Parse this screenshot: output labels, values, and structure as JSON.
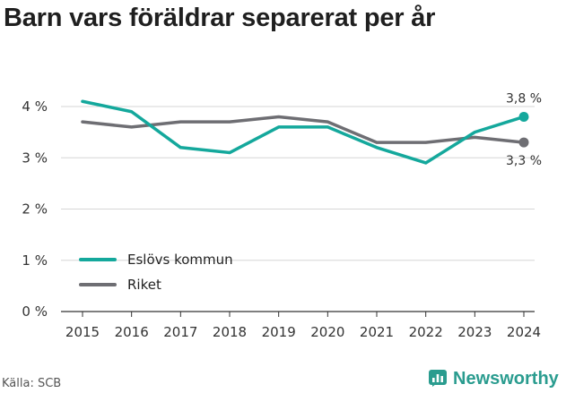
{
  "title": "Barn vars föräldrar separerat per år",
  "source": "Källa: SCB",
  "brand": {
    "name": "Newsworthy",
    "icon": "newsworthy-chart-logo-icon",
    "color": "#2a9c8f"
  },
  "chart_data": {
    "type": "line",
    "x": [
      "2015",
      "2016",
      "2017",
      "2018",
      "2019",
      "2020",
      "2021",
      "2022",
      "2023",
      "2024"
    ],
    "ylim": [
      0,
      4
    ],
    "yticks": [
      0,
      1,
      2,
      3,
      4
    ],
    "ytick_labels": [
      "0 %",
      "1 %",
      "2 %",
      "3 %",
      "4 %"
    ],
    "grid": "horizontal",
    "legend_position": "lower-left",
    "series": [
      {
        "name": "Eslövs kommun",
        "color": "#14a89c",
        "values": [
          4.1,
          3.9,
          3.2,
          3.1,
          3.6,
          3.6,
          3.2,
          2.9,
          3.5,
          3.8
        ],
        "end_label": "3,8 %"
      },
      {
        "name": "Riket",
        "color": "#6e6e73",
        "values": [
          3.7,
          3.6,
          3.7,
          3.7,
          3.8,
          3.7,
          3.3,
          3.3,
          3.4,
          3.3
        ],
        "end_label": "3,3 %"
      }
    ]
  }
}
